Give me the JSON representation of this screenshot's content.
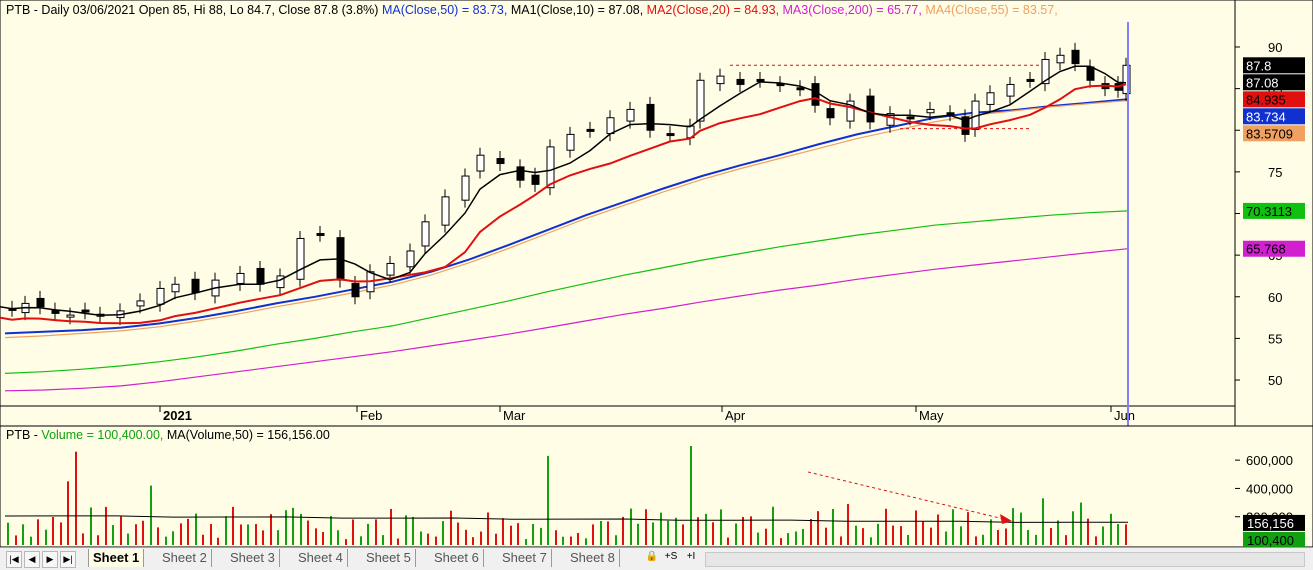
{
  "legend": {
    "symbol": "PTB",
    "summary": " - Daily 03/06/2021 Open 85, Hi 88, Lo 84.7, Close 87.8 (3.8%)",
    "ma50": "MA(Close,50) = 83.73,",
    "ma1": " MA1(Close,10) = 87.08,",
    "ma2": " MA2(Close,20) = 84.93,",
    "ma3": " MA3(Close,200) = 65.77,",
    "ma4": " MA4(Close,55) = 83.57,",
    "volume_prefix": "PTB - ",
    "volume_part": "Volume = 100,400.00,",
    "volume_ma": " MA(Volume,50) = 156,156.00"
  },
  "colors": {
    "background": "#fffde6",
    "ma50": "#1030d0",
    "ma10": "#000000",
    "ma20": "#e01010",
    "ma200": "#d020d0",
    "ma55": "#f0a060",
    "ma_green": "#10c010",
    "volume_up": "#10a010",
    "volume_down": "#e01010",
    "cursor": "#8080ff"
  },
  "chart_data": [
    {
      "type": "candlestick",
      "y_axis": {
        "ticks": [
          50,
          55,
          60,
          65,
          70,
          75,
          80,
          85,
          90
        ],
        "range": [
          47,
          93
        ]
      },
      "x_axis": {
        "labels": [
          "2021",
          "Feb",
          "Mar",
          "Apr",
          "May",
          "Jun"
        ]
      },
      "last_close": 87.8,
      "value_labels": [
        {
          "text": "87.8",
          "value": 87.8,
          "bg": "#000000",
          "fg": "#ffffff"
        },
        {
          "text": "87.08",
          "value": 87.08,
          "bg": "#000000",
          "fg": "#ffffff"
        },
        {
          "text": "84.935",
          "value": 84.935,
          "bg": "#e01010",
          "fg": "#000000"
        },
        {
          "text": "83.734",
          "value": 83.734,
          "bg": "#1030d0",
          "fg": "#ffffff"
        },
        {
          "text": "83.5709",
          "value": 83.5709,
          "bg": "#f0a060",
          "fg": "#000000"
        },
        {
          "text": "70.3113",
          "value": 70.3113,
          "bg": "#10c010",
          "fg": "#000000"
        },
        {
          "text": "65.768",
          "value": 65.768,
          "bg": "#d020d0",
          "fg": "#000000"
        }
      ],
      "series": [
        {
          "name": "MA(Close,50)",
          "values": [
            55.6,
            55.8,
            56.0,
            56.3,
            56.8,
            57.5,
            58.3,
            59.2,
            60.0,
            60.9,
            61.8,
            63.0,
            64.5,
            66.2,
            68.0,
            69.8,
            71.4,
            73.0,
            74.5,
            75.8,
            77.0,
            78.3,
            79.5,
            80.5,
            81.5,
            82.1,
            82.4,
            82.9,
            83.3,
            83.73
          ]
        },
        {
          "name": "MA(Close,55)",
          "values": [
            55.1,
            55.3,
            55.6,
            55.9,
            56.4,
            57.1,
            57.9,
            58.8,
            59.6,
            60.5,
            61.4,
            62.6,
            64.1,
            65.8,
            67.6,
            69.4,
            71.0,
            72.6,
            74.1,
            75.4,
            76.6,
            77.8,
            79.0,
            80.0,
            81.0,
            81.8,
            82.3,
            82.8,
            83.2,
            83.57
          ]
        },
        {
          "name": "MA(Close,200)",
          "values": [
            48.7,
            48.8,
            49.0,
            49.3,
            49.8,
            50.4,
            51.0,
            51.6,
            52.2,
            52.8,
            53.4,
            54.1,
            54.8,
            55.5,
            56.3,
            57.1,
            57.9,
            58.6,
            59.4,
            60.1,
            60.8,
            61.4,
            62.1,
            62.7,
            63.3,
            63.8,
            64.3,
            64.8,
            65.3,
            65.77
          ]
        },
        {
          "name": "",
          "values": [
            50.8,
            51.0,
            51.3,
            51.7,
            52.2,
            52.8,
            53.5,
            54.3,
            55.0,
            55.8,
            56.5,
            57.5,
            58.5,
            59.5,
            60.6,
            61.6,
            62.6,
            63.5,
            64.4,
            65.2,
            66.0,
            66.7,
            67.4,
            68.0,
            68.6,
            69.0,
            69.4,
            69.8,
            70.1,
            70.31
          ]
        }
      ]
    },
    {
      "type": "bar",
      "name": "Volume",
      "y_axis": {
        "ticks": [
          200000,
          400000,
          600000
        ],
        "tick_labels": [
          "200,000",
          "400,000",
          "600,000"
        ],
        "range": [
          0,
          700000
        ]
      },
      "last_volume": 100400,
      "volume_ma": 156156,
      "value_labels": [
        {
          "text": "156,156",
          "value": 156156,
          "bg": "#000000",
          "fg": "#ffffff"
        },
        {
          "text": "100,400",
          "value": 100400,
          "bg": "#10a010",
          "fg": "#000000"
        }
      ]
    }
  ],
  "tabs": {
    "items": [
      "Sheet 1",
      "Sheet 2",
      "Sheet 3",
      "Sheet 4",
      "Sheet 5",
      "Sheet 6",
      "Sheet 7",
      "Sheet 8"
    ],
    "active": 0
  },
  "nav_buttons": [
    "|◀",
    "◀",
    "▶",
    "▶|"
  ],
  "tools": [
    "🔒",
    "+S",
    "+I"
  ]
}
